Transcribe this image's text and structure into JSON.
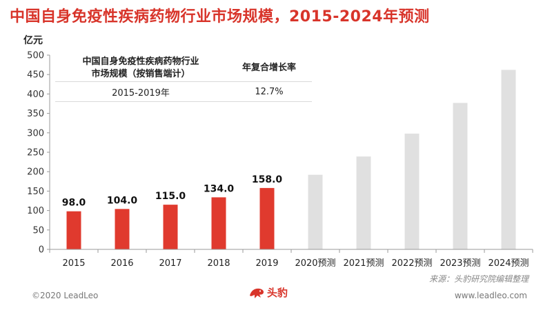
{
  "title": "中国自身免疫性疾病药物行业市场规模，2015-2024年预测",
  "unit": "亿元",
  "summary_table": {
    "header_col1_line1": "中国自身免疫性疾病药物行业",
    "header_col1_line2": "市场规模（按销售端计）",
    "header_col2": "年复合增长率",
    "period": "2015-2019年",
    "cagr": "12.7%"
  },
  "chart_data": {
    "type": "bar",
    "categories": [
      "2015",
      "2016",
      "2017",
      "2018",
      "2019",
      "2020预测",
      "2021预测",
      "2022预测",
      "2023预测",
      "2024预测"
    ],
    "values": [
      98.0,
      104.0,
      115.0,
      134.0,
      158.0,
      192,
      239,
      298,
      377,
      462
    ],
    "data_labels": [
      "98.0",
      "104.0",
      "115.0",
      "134.0",
      "158.0",
      "",
      "",
      "",
      "",
      ""
    ],
    "bar_colors": [
      "#e03a2e",
      "#e03a2e",
      "#e03a2e",
      "#e03a2e",
      "#e03a2e",
      "#e0e0e0",
      "#e0e0e0",
      "#e0e0e0",
      "#e0e0e0",
      "#e0e0e0"
    ],
    "ylim": [
      0,
      500
    ],
    "yticks": [
      0,
      50,
      100,
      150,
      200,
      250,
      300,
      350,
      400,
      450,
      500
    ],
    "ylabel": "亿元",
    "xlabel": "",
    "grid": false
  },
  "source": "来源：头豹研究院编辑整理",
  "footer": {
    "copyright": "©2020 LeadLeo",
    "brand": "头豹",
    "website": "www.leadleo.com"
  },
  "colors": {
    "accent": "#d8342a",
    "actual_bar": "#e03a2e",
    "forecast_bar": "#e0e0e0"
  }
}
